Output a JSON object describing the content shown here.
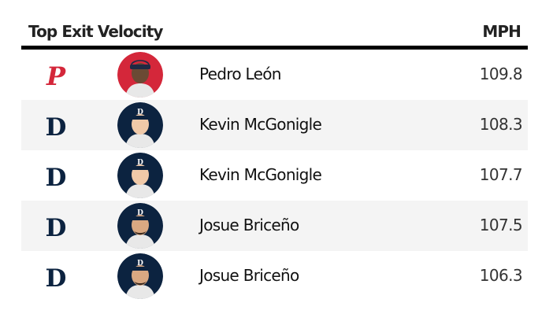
{
  "header": {
    "title": "Top Exit Velocity",
    "unit": "MPH"
  },
  "colors": {
    "phillies_red": "#d4273a",
    "tigers_navy": "#0c2340",
    "header_rule": "#000000",
    "alt_row": "#f4f4f4"
  },
  "rows": [
    {
      "team_icon": "phillies-logo-icon",
      "player": "Pedro León",
      "exit_velocity": "109.8"
    },
    {
      "team_icon": "tigers-logo-icon",
      "player": "Kevin McGonigle",
      "exit_velocity": "108.3"
    },
    {
      "team_icon": "tigers-logo-icon",
      "player": "Kevin McGonigle",
      "exit_velocity": "107.7"
    },
    {
      "team_icon": "tigers-logo-icon",
      "player": "Josue Briceño",
      "exit_velocity": "107.5"
    },
    {
      "team_icon": "tigers-logo-icon",
      "player": "Josue Briceño",
      "exit_velocity": "106.3"
    }
  ]
}
